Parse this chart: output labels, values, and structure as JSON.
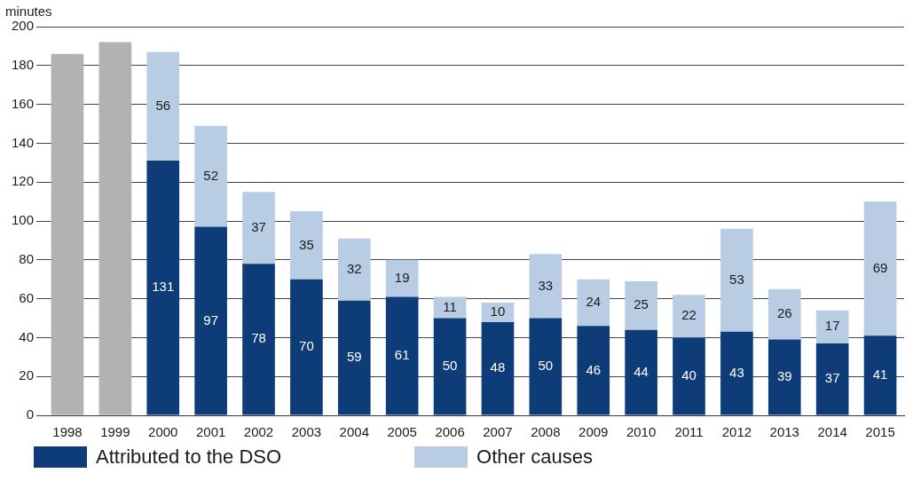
{
  "chart_data": {
    "type": "bar",
    "ylabel": "minutes",
    "stacked": true,
    "grid": "y",
    "legend": "bottom left",
    "categories": [
      "1998",
      "1999",
      "2000",
      "2001",
      "2002",
      "2003",
      "2004",
      "2005",
      "2006",
      "2007",
      "2008",
      "2009",
      "2010",
      "2011",
      "2012",
      "2013",
      "2014",
      "2015"
    ],
    "ylim": [
      0,
      200
    ],
    "yticks": [
      0,
      20,
      40,
      60,
      80,
      100,
      120,
      140,
      160,
      180,
      200
    ],
    "series": [
      {
        "color": "#b2b2b2",
        "values": [
          186,
          192,
          null,
          null,
          null,
          null,
          null,
          null,
          null,
          null,
          null,
          null,
          null,
          null,
          null,
          null,
          null,
          null
        ]
      },
      {
        "name": "Attributed to the DSO",
        "color": "#0d3c78",
        "values": [
          null,
          null,
          131,
          97,
          78,
          70,
          59,
          61,
          50,
          48,
          50,
          46,
          44,
          40,
          43,
          39,
          37,
          41
        ],
        "value_labels": [
          null,
          null,
          "131",
          "97",
          "78",
          "70",
          "59",
          "61",
          "50",
          "48",
          "50",
          "46",
          "44",
          "40",
          "43",
          "39",
          "37",
          "41"
        ]
      },
      {
        "name": "Other causes",
        "color": "#b8cce4",
        "values": [
          null,
          null,
          56,
          52,
          37,
          35,
          32,
          19,
          11,
          10,
          33,
          24,
          25,
          22,
          53,
          26,
          17,
          69
        ],
        "value_labels": [
          null,
          null,
          "56",
          "52",
          "37",
          "35",
          "32",
          "19",
          "11",
          "10",
          "33",
          "24",
          "25",
          "22",
          "53",
          "26",
          "17",
          "69"
        ]
      }
    ]
  }
}
